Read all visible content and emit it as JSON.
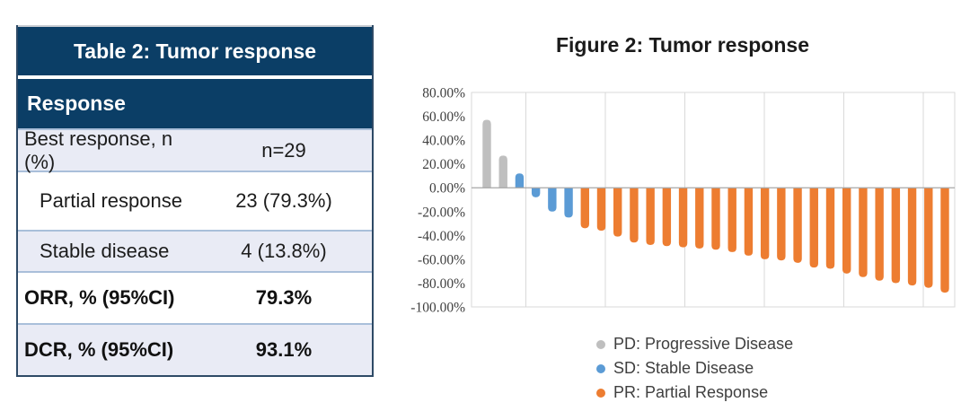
{
  "table": {
    "title": "Table 2: Tumor response",
    "section_header": "Response",
    "rows": [
      {
        "label": "Best response, n (%)",
        "value": "n=29"
      },
      {
        "label": "Partial response",
        "value": "23 (79.3%)"
      },
      {
        "label": "Stable disease",
        "value": "4 (13.8%)"
      },
      {
        "label": "ORR, % (95%CI)",
        "value": "79.3%"
      },
      {
        "label": "DCR, % (95%CI)",
        "value": "93.1%"
      }
    ],
    "colors": {
      "header_bg": "#0b3e66",
      "row_alt_bg": "#e9ebf5",
      "row_bg": "#ffffff",
      "row_border": "#a9bfda",
      "outer_border": "#2e4a66"
    }
  },
  "chart_data": {
    "type": "bar",
    "title": "Figure 2: Tumor response",
    "xlabel": "",
    "ylabel": "",
    "ylim": [
      -100,
      80
    ],
    "ytick_step": 20,
    "ytick_format": "0.00%",
    "grid": "vertical",
    "legend_position": "bottom",
    "legend": [
      {
        "code": "PD",
        "label": "PD: Progressive Disease",
        "color": "#bfbfbf"
      },
      {
        "code": "SD",
        "label": "SD: Stable Disease",
        "color": "#5b9bd5"
      },
      {
        "code": "PR",
        "label": "PR: Partial Response",
        "color": "#ed7d31"
      }
    ],
    "bars": [
      {
        "value": 57,
        "group": "PD"
      },
      {
        "value": 27,
        "group": "PD"
      },
      {
        "value": 12,
        "group": "SD"
      },
      {
        "value": -8,
        "group": "SD"
      },
      {
        "value": -20,
        "group": "SD"
      },
      {
        "value": -25,
        "group": "SD"
      },
      {
        "value": -34,
        "group": "PR"
      },
      {
        "value": -36,
        "group": "PR"
      },
      {
        "value": -41,
        "group": "PR"
      },
      {
        "value": -46,
        "group": "PR"
      },
      {
        "value": -48,
        "group": "PR"
      },
      {
        "value": -49,
        "group": "PR"
      },
      {
        "value": -50,
        "group": "PR"
      },
      {
        "value": -51,
        "group": "PR"
      },
      {
        "value": -52,
        "group": "PR"
      },
      {
        "value": -54,
        "group": "PR"
      },
      {
        "value": -57,
        "group": "PR"
      },
      {
        "value": -60,
        "group": "PR"
      },
      {
        "value": -61,
        "group": "PR"
      },
      {
        "value": -63,
        "group": "PR"
      },
      {
        "value": -67,
        "group": "PR"
      },
      {
        "value": -68,
        "group": "PR"
      },
      {
        "value": -72,
        "group": "PR"
      },
      {
        "value": -75,
        "group": "PR"
      },
      {
        "value": -78,
        "group": "PR"
      },
      {
        "value": -80,
        "group": "PR"
      },
      {
        "value": -82,
        "group": "PR"
      },
      {
        "value": -84,
        "group": "PR"
      },
      {
        "value": -88,
        "group": "PR"
      }
    ],
    "chart_colors": {
      "plot_border": "#d9d9d9",
      "gridline": "#d9d9d9",
      "zero_axis": "#a6a6a6",
      "tick_label": "#3f3f3f"
    }
  }
}
